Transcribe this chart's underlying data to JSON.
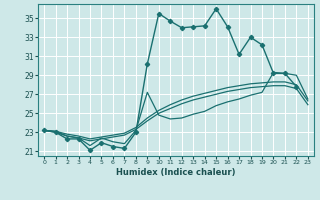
{
  "background_color": "#cee8e8",
  "grid_color": "#b0d8d8",
  "line_color": "#1a7070",
  "xlabel": "Humidex (Indice chaleur)",
  "xlim": [
    -0.5,
    23.5
  ],
  "ylim": [
    20.5,
    36.5
  ],
  "yticks": [
    21,
    23,
    25,
    27,
    29,
    31,
    33,
    35
  ],
  "xticks": [
    0,
    1,
    2,
    3,
    4,
    5,
    6,
    7,
    8,
    9,
    10,
    11,
    12,
    13,
    14,
    15,
    16,
    17,
    18,
    19,
    20,
    21,
    22,
    23
  ],
  "series_marked": {
    "x": [
      0,
      1,
      2,
      3,
      4,
      5,
      6,
      7,
      8,
      9,
      10,
      11,
      12,
      13,
      14,
      15,
      16,
      17,
      18,
      19,
      20,
      21,
      22
    ],
    "y": [
      23.2,
      23.0,
      22.3,
      22.3,
      21.1,
      21.9,
      21.5,
      21.3,
      23.0,
      30.2,
      35.5,
      34.7,
      34.0,
      34.1,
      34.2,
      36.0,
      34.1,
      31.2,
      33.0,
      32.2,
      29.2,
      29.2,
      27.8
    ]
  },
  "series_smooth1": {
    "x": [
      0,
      1,
      2,
      3,
      4,
      5,
      6,
      7,
      8,
      9,
      10,
      11,
      12,
      13,
      14,
      15,
      16,
      17,
      18,
      19,
      20,
      21,
      22,
      23
    ],
    "y": [
      23.2,
      23.1,
      22.8,
      22.6,
      22.3,
      22.5,
      22.7,
      22.9,
      23.5,
      24.5,
      25.3,
      25.9,
      26.4,
      26.8,
      27.1,
      27.4,
      27.7,
      27.9,
      28.1,
      28.2,
      28.3,
      28.3,
      28.0,
      26.3
    ]
  },
  "series_smooth2": {
    "x": [
      0,
      1,
      2,
      3,
      4,
      5,
      6,
      7,
      8,
      9,
      10,
      11,
      12,
      13,
      14,
      15,
      16,
      17,
      18,
      19,
      20,
      21,
      22,
      23
    ],
    "y": [
      23.2,
      23.0,
      22.6,
      22.4,
      22.1,
      22.3,
      22.5,
      22.7,
      23.3,
      24.2,
      25.0,
      25.5,
      26.0,
      26.4,
      26.7,
      27.0,
      27.3,
      27.5,
      27.7,
      27.8,
      27.9,
      27.9,
      27.6,
      25.9
    ]
  },
  "series_medium": {
    "x": [
      0,
      1,
      2,
      3,
      4,
      5,
      6,
      7,
      8,
      9,
      10,
      11,
      12,
      13,
      14,
      15,
      16,
      17,
      18,
      19,
      20,
      21,
      22,
      23
    ],
    "y": [
      23.2,
      23.1,
      22.6,
      22.4,
      21.6,
      22.4,
      22.0,
      21.8,
      23.2,
      27.2,
      24.8,
      24.4,
      24.5,
      24.9,
      25.2,
      25.8,
      26.2,
      26.5,
      26.9,
      27.2,
      29.3,
      29.2,
      29.0,
      26.5
    ]
  }
}
